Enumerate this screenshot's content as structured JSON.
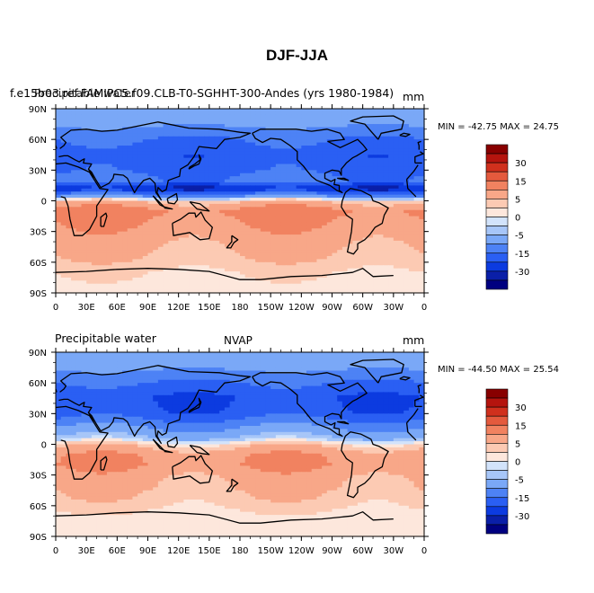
{
  "main_title": "DJF-JJA",
  "chart_data": [
    {
      "type": "heatmap",
      "panel": "top",
      "left_title": "f.e15b03.ref.FAMIPC5.f09.CLB-T0-SGHHT-300-Andes (yrs 1980-1984)",
      "overlay_title": "Precipitable water",
      "right_title": "mm",
      "stats": {
        "min_label": "MIN =",
        "min": "-42.75",
        "max_label": "MAX =",
        "max": "24.75"
      },
      "xlabel": "",
      "ylabel": "",
      "x_ticks": [
        "0",
        "30E",
        "60E",
        "90E",
        "120E",
        "150E",
        "180",
        "150W",
        "120W",
        "90W",
        "60W",
        "30W",
        "0"
      ],
      "y_ticks": [
        "90N",
        "60N",
        "30N",
        "0",
        "30S",
        "60S",
        "90S"
      ],
      "xlim": [
        0,
        360
      ],
      "ylim": [
        -90,
        90
      ],
      "colorbar_levels": [
        -35,
        -30,
        -25,
        -20,
        -15,
        -10,
        -5,
        -2,
        0,
        2,
        5,
        10,
        15,
        20,
        25,
        30,
        35
      ],
      "colorbar_labels": [
        "30",
        "15",
        "5",
        "0",
        "-5",
        "-15",
        "-30"
      ],
      "zonal_profile": [
        {
          "lat": 90,
          "v": -7
        },
        {
          "lat": 75,
          "v": -9
        },
        {
          "lat": 60,
          "v": -15
        },
        {
          "lat": 45,
          "v": -18
        },
        {
          "lat": 30,
          "v": -17
        },
        {
          "lat": 20,
          "v": -13
        },
        {
          "lat": 12,
          "v": -25
        },
        {
          "lat": 5,
          "v": -12
        },
        {
          "lat": 0,
          "v": 4
        },
        {
          "lat": -10,
          "v": 12
        },
        {
          "lat": -20,
          "v": 10
        },
        {
          "lat": -30,
          "v": 8
        },
        {
          "lat": -45,
          "v": 6
        },
        {
          "lat": -60,
          "v": 4
        },
        {
          "lat": -70,
          "v": 2
        },
        {
          "lat": -90,
          "v": 1
        }
      ]
    },
    {
      "type": "heatmap",
      "panel": "bottom",
      "left_title": "Precipitable water",
      "center_title": "NVAP",
      "right_title": "mm",
      "stats": {
        "min_label": "MIN =",
        "min": "-44.50",
        "max_label": "MAX =",
        "max": "25.54"
      },
      "xlabel": "",
      "ylabel": "",
      "x_ticks": [
        "0",
        "30E",
        "60E",
        "90E",
        "120E",
        "150E",
        "180",
        "150W",
        "120W",
        "90W",
        "60W",
        "30W",
        "0"
      ],
      "y_ticks": [
        "90N",
        "60N",
        "30N",
        "0",
        "30S",
        "60S",
        "90S"
      ],
      "xlim": [
        0,
        360
      ],
      "ylim": [
        -90,
        90
      ],
      "colorbar_levels": [
        -35,
        -30,
        -25,
        -20,
        -15,
        -10,
        -5,
        -2,
        0,
        2,
        5,
        10,
        15,
        20,
        25,
        30,
        35
      ],
      "colorbar_labels": [
        "30",
        "15",
        "5",
        "0",
        "-5",
        "-15",
        "-30"
      ],
      "zonal_profile": [
        {
          "lat": 90,
          "v": -7
        },
        {
          "lat": 75,
          "v": -9
        },
        {
          "lat": 60,
          "v": -15
        },
        {
          "lat": 45,
          "v": -20
        },
        {
          "lat": 30,
          "v": -18
        },
        {
          "lat": 20,
          "v": -12
        },
        {
          "lat": 12,
          "v": -8
        },
        {
          "lat": 5,
          "v": -3
        },
        {
          "lat": 0,
          "v": 3
        },
        {
          "lat": -10,
          "v": 9
        },
        {
          "lat": -20,
          "v": 10
        },
        {
          "lat": -30,
          "v": 7
        },
        {
          "lat": -45,
          "v": 5
        },
        {
          "lat": -60,
          "v": 3
        },
        {
          "lat": -70,
          "v": 1
        },
        {
          "lat": -90,
          "v": 1
        }
      ]
    }
  ],
  "colors": {
    "scale": [
      "#000080",
      "#0a1fa8",
      "#0c3be0",
      "#2a5ff3",
      "#4d82f5",
      "#7aa8f7",
      "#a7c6f8",
      "#d2e3fb",
      "#fde7dc",
      "#fccab3",
      "#f8a788",
      "#f18260",
      "#e45a3d",
      "#d0301d",
      "#b5140e",
      "#880000"
    ],
    "coast": "#000000"
  }
}
